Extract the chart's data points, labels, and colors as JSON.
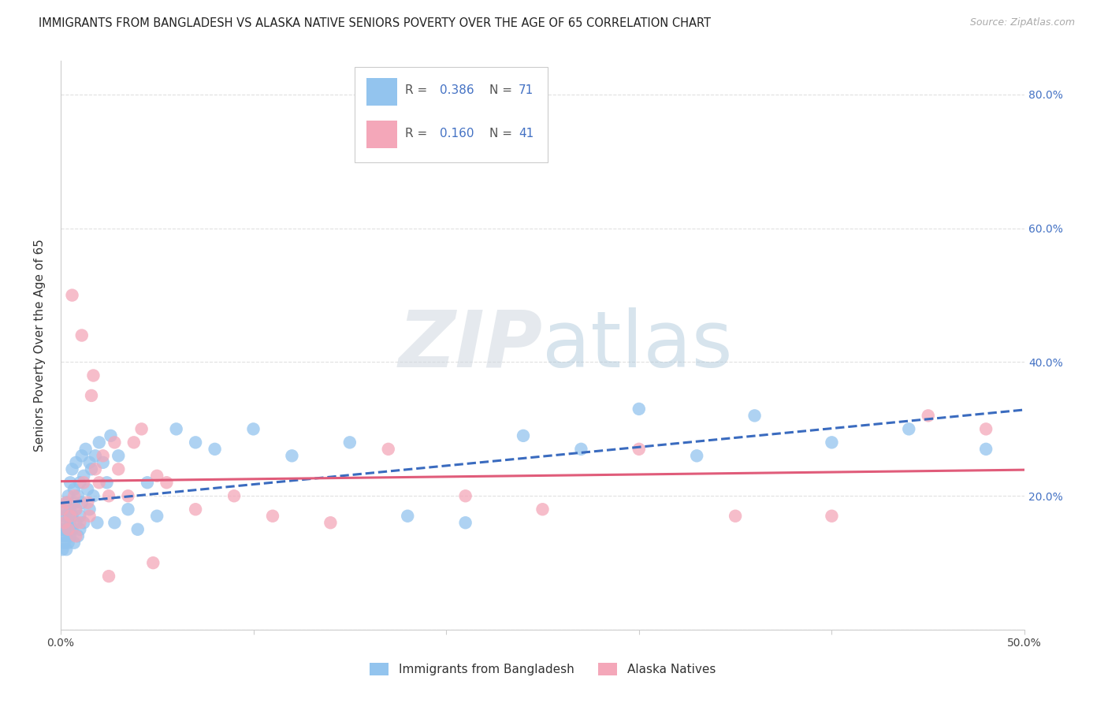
{
  "title": "IMMIGRANTS FROM BANGLADESH VS ALASKA NATIVE SENIORS POVERTY OVER THE AGE OF 65 CORRELATION CHART",
  "source": "Source: ZipAtlas.com",
  "ylabel": "Seniors Poverty Over the Age of 65",
  "xlim": [
    0.0,
    0.5
  ],
  "ylim": [
    0.0,
    0.85
  ],
  "ytick_positions": [
    0.0,
    0.2,
    0.4,
    0.6,
    0.8
  ],
  "ytick_labels": [
    "",
    "20.0%",
    "40.0%",
    "60.0%",
    "80.0%"
  ],
  "grid_color": "#e0e0e0",
  "background_color": "#ffffff",
  "series": [
    {
      "name": "Immigrants from Bangladesh",
      "color": "#93C4EE",
      "R": 0.386,
      "N": 71,
      "trend_color": "#3A6BBF",
      "trend_style": "dashed",
      "x": [
        0.001,
        0.001,
        0.001,
        0.002,
        0.002,
        0.002,
        0.002,
        0.003,
        0.003,
        0.003,
        0.003,
        0.004,
        0.004,
        0.004,
        0.004,
        0.005,
        0.005,
        0.005,
        0.005,
        0.006,
        0.006,
        0.006,
        0.007,
        0.007,
        0.007,
        0.008,
        0.008,
        0.008,
        0.009,
        0.009,
        0.01,
        0.01,
        0.01,
        0.011,
        0.011,
        0.012,
        0.012,
        0.013,
        0.014,
        0.015,
        0.015,
        0.016,
        0.017,
        0.018,
        0.019,
        0.02,
        0.022,
        0.024,
        0.026,
        0.028,
        0.03,
        0.035,
        0.04,
        0.045,
        0.05,
        0.06,
        0.07,
        0.08,
        0.1,
        0.12,
        0.15,
        0.18,
        0.21,
        0.24,
        0.27,
        0.3,
        0.33,
        0.36,
        0.4,
        0.44,
        0.48
      ],
      "y": [
        0.15,
        0.14,
        0.12,
        0.17,
        0.15,
        0.13,
        0.18,
        0.16,
        0.14,
        0.19,
        0.12,
        0.15,
        0.17,
        0.13,
        0.2,
        0.14,
        0.16,
        0.18,
        0.22,
        0.15,
        0.17,
        0.24,
        0.13,
        0.19,
        0.21,
        0.16,
        0.18,
        0.25,
        0.14,
        0.2,
        0.17,
        0.22,
        0.15,
        0.26,
        0.19,
        0.23,
        0.16,
        0.27,
        0.21,
        0.25,
        0.18,
        0.24,
        0.2,
        0.26,
        0.16,
        0.28,
        0.25,
        0.22,
        0.29,
        0.16,
        0.26,
        0.18,
        0.15,
        0.22,
        0.17,
        0.3,
        0.28,
        0.27,
        0.3,
        0.26,
        0.28,
        0.17,
        0.16,
        0.29,
        0.27,
        0.33,
        0.26,
        0.32,
        0.28,
        0.3,
        0.27
      ]
    },
    {
      "name": "Alaska Natives",
      "color": "#F4A7B9",
      "R": 0.16,
      "N": 41,
      "trend_color": "#E05C7A",
      "trend_style": "solid",
      "x": [
        0.001,
        0.002,
        0.003,
        0.004,
        0.005,
        0.006,
        0.007,
        0.008,
        0.01,
        0.011,
        0.012,
        0.014,
        0.015,
        0.016,
        0.017,
        0.018,
        0.02,
        0.022,
        0.025,
        0.028,
        0.03,
        0.035,
        0.038,
        0.042,
        0.048,
        0.055,
        0.07,
        0.09,
        0.11,
        0.14,
        0.17,
        0.21,
        0.25,
        0.3,
        0.35,
        0.4,
        0.45,
        0.48,
        0.05,
        0.025,
        0.008
      ],
      "y": [
        0.18,
        0.16,
        0.19,
        0.15,
        0.17,
        0.5,
        0.2,
        0.18,
        0.16,
        0.44,
        0.22,
        0.19,
        0.17,
        0.35,
        0.38,
        0.24,
        0.22,
        0.26,
        0.2,
        0.28,
        0.24,
        0.2,
        0.28,
        0.3,
        0.1,
        0.22,
        0.18,
        0.2,
        0.17,
        0.16,
        0.27,
        0.2,
        0.18,
        0.27,
        0.17,
        0.17,
        0.32,
        0.3,
        0.23,
        0.08,
        0.14
      ]
    }
  ]
}
